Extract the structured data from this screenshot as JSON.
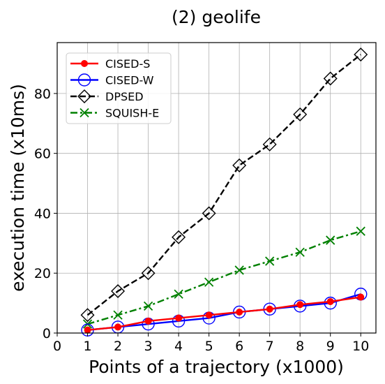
{
  "chart_data": {
    "type": "line",
    "title": "(2) geolife",
    "xlabel": "Points of a trajectory (x1000)",
    "ylabel": "execution time (x10ms)",
    "x": [
      1,
      2,
      3,
      4,
      5,
      6,
      7,
      8,
      9,
      10
    ],
    "xlim": [
      0,
      10.5
    ],
    "ylim": [
      0,
      97
    ],
    "xticks": [
      "0",
      "1",
      "2",
      "3",
      "4",
      "5",
      "6",
      "7",
      "8",
      "9",
      "10"
    ],
    "yticks": [
      "0",
      "20",
      "40",
      "60",
      "80"
    ],
    "grid": true,
    "legend_position": "top-left",
    "series": [
      {
        "name": "CISED-S",
        "color": "#ff0000",
        "dash": "solid",
        "marker": "filled-circle",
        "values": [
          1,
          2,
          4,
          5,
          6,
          7,
          8,
          9.5,
          10.5,
          12
        ]
      },
      {
        "name": "CISED-W",
        "color": "#0000ff",
        "dash": "solid",
        "marker": "open-circle",
        "values": [
          1,
          2,
          3,
          4,
          5,
          7,
          8,
          9,
          10,
          13
        ]
      },
      {
        "name": "DPSED",
        "color": "#000000",
        "dash": "dashed",
        "marker": "open-diamond",
        "values": [
          6,
          14,
          20,
          32,
          40,
          56,
          63,
          73,
          85,
          93
        ]
      },
      {
        "name": "SQUISH-E",
        "color": "#008000",
        "dash": "dashdot",
        "marker": "x",
        "values": [
          3,
          6,
          9,
          13,
          17,
          21,
          24,
          27,
          31,
          34
        ]
      }
    ]
  }
}
